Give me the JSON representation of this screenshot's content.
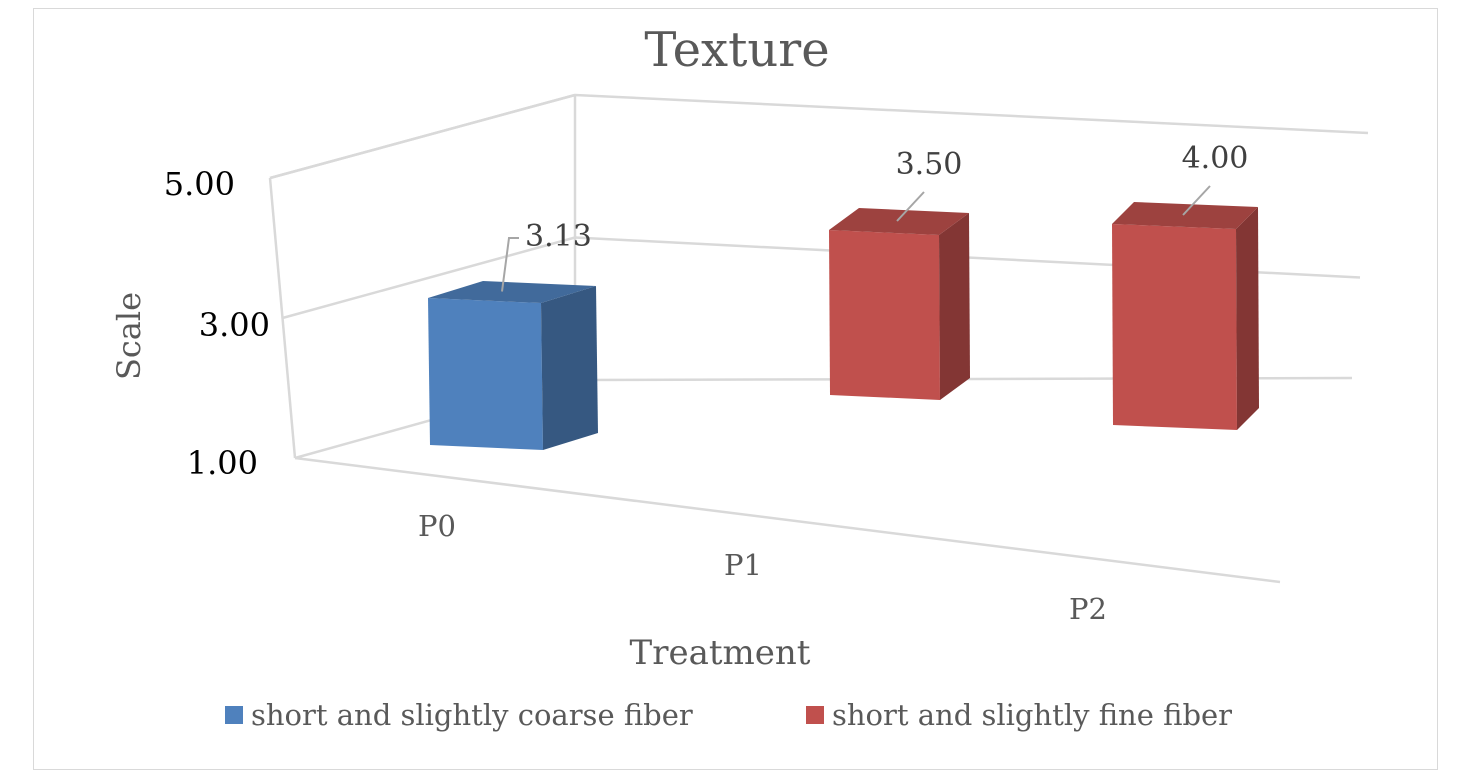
{
  "chart_data": {
    "type": "bar",
    "title": "Texture",
    "xlabel": "Treatment",
    "ylabel": "Scale",
    "categories": [
      "P0",
      "P1",
      "P2"
    ],
    "yticks": [
      "1.00",
      "3.00",
      "5.00"
    ],
    "ylim": [
      1,
      5
    ],
    "grid": true,
    "legend_position": "bottom",
    "series": [
      {
        "name": "short and slightly coarse fiber",
        "color": "#4f81bd",
        "values": [
          3.13,
          null,
          null
        ],
        "labels": [
          "3.13",
          "",
          ""
        ]
      },
      {
        "name": "short and slightly fine fiber",
        "color": "#c0504d",
        "values": [
          null,
          3.5,
          4.0
        ],
        "labels": [
          "",
          "3.50",
          "4.00"
        ]
      }
    ]
  }
}
